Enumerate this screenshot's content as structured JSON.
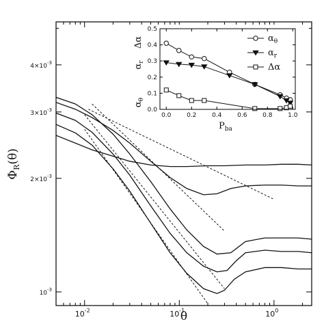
{
  "chart_data": [
    {
      "type": "line",
      "role": "main",
      "xscale": "log",
      "yscale": "log",
      "xlim": [
        0.005,
        2.5
      ],
      "ylim": [
        0.00092,
        0.0052
      ],
      "xlabel": "θ",
      "ylabel": "Φ_R(θ)",
      "ylabel_main": "Φ",
      "ylabel_sub": "R",
      "ylabel_tail": "(θ)",
      "x_ticks": [
        {
          "value": 0.01,
          "label": "10",
          "exp": "-2"
        },
        {
          "value": 0.1,
          "label": "10",
          "exp": "-1"
        },
        {
          "value": 1,
          "label": "10",
          "exp": "0"
        }
      ],
      "y_ticks": [
        {
          "value": 0.001,
          "label": "10",
          "exp": "-3"
        },
        {
          "value": 0.002,
          "label": "2×10",
          "exp": "-3"
        },
        {
          "value": 0.003,
          "label": "3×10",
          "exp": "-3"
        },
        {
          "value": 0.004,
          "label": "4×10",
          "exp": "-3"
        }
      ],
      "series": [
        {
          "style": "solid",
          "x": [
            0.005,
            0.008,
            0.012,
            0.02,
            0.03,
            0.05,
            0.08,
            0.12,
            0.2,
            0.3,
            0.5,
            0.8,
            1.2,
            1.8,
            2.5
          ],
          "y": [
            0.0026,
            0.00248,
            0.00238,
            0.00229,
            0.00222,
            0.00217,
            0.00215,
            0.00215,
            0.00216,
            0.00216,
            0.00217,
            0.00217,
            0.00218,
            0.00218,
            0.00217
          ]
        },
        {
          "style": "solid",
          "x": [
            0.005,
            0.008,
            0.012,
            0.02,
            0.03,
            0.05,
            0.08,
            0.12,
            0.18,
            0.25,
            0.35,
            0.5,
            0.8,
            1.2,
            1.8,
            2.5
          ],
          "y": [
            0.00318,
            0.00305,
            0.0029,
            0.00268,
            0.00248,
            0.00222,
            0.00201,
            0.00188,
            0.00181,
            0.00182,
            0.00188,
            0.00191,
            0.00192,
            0.00192,
            0.00191,
            0.00191
          ]
        },
        {
          "style": "solid",
          "x": [
            0.005,
            0.008,
            0.012,
            0.02,
            0.03,
            0.05,
            0.08,
            0.12,
            0.18,
            0.25,
            0.35,
            0.5,
            0.8,
            1.2,
            1.8,
            2.5
          ],
          "y": [
            0.00328,
            0.00315,
            0.00295,
            0.00262,
            0.00232,
            0.00196,
            0.00166,
            0.00146,
            0.00132,
            0.00126,
            0.00127,
            0.00136,
            0.00139,
            0.00139,
            0.00139,
            0.00138
          ]
        },
        {
          "style": "solid",
          "x": [
            0.005,
            0.008,
            0.012,
            0.02,
            0.03,
            0.05,
            0.08,
            0.12,
            0.18,
            0.25,
            0.32,
            0.4,
            0.5,
            0.8,
            1.2,
            1.8,
            2.5
          ],
          "y": [
            0.00298,
            0.00285,
            0.00265,
            0.00232,
            0.00204,
            0.00169,
            0.00143,
            0.00127,
            0.00117,
            0.00113,
            0.00114,
            0.00121,
            0.00127,
            0.00129,
            0.00128,
            0.00128,
            0.00127
          ]
        },
        {
          "style": "solid",
          "x": [
            0.005,
            0.008,
            0.012,
            0.02,
            0.03,
            0.05,
            0.08,
            0.12,
            0.18,
            0.25,
            0.3,
            0.38,
            0.5,
            0.8,
            1.2,
            1.8,
            2.5
          ],
          "y": [
            0.00278,
            0.00264,
            0.00245,
            0.00212,
            0.00185,
            0.00152,
            0.00127,
            0.00112,
            0.00102,
            0.00099,
            0.00101,
            0.00108,
            0.00113,
            0.00116,
            0.00116,
            0.00115,
            0.00115
          ]
        },
        {
          "style": "dashed",
          "x": [
            0.011,
            1.0
          ],
          "y": [
            0.00305,
            0.00176
          ]
        },
        {
          "style": "dashed",
          "x": [
            0.012,
            0.3
          ],
          "y": [
            0.00315,
            0.00145
          ]
        },
        {
          "style": "dashed",
          "x": [
            0.01,
            0.3
          ],
          "y": [
            0.00295,
            0.00102
          ]
        },
        {
          "style": "dashed",
          "x": [
            0.01,
            0.2
          ],
          "y": [
            0.0027,
            0.00093
          ]
        }
      ]
    },
    {
      "type": "line",
      "role": "inset",
      "xlim": [
        -0.05,
        1.02
      ],
      "ylim": [
        0,
        0.5
      ],
      "xlabel": "P",
      "xlabel_sub": "ba",
      "ylabel_parts": [
        {
          "main": "α",
          "sub": "θ"
        },
        {
          "main": "α",
          "sub": "r"
        },
        {
          "main": "Δα",
          "sub": ""
        }
      ],
      "x_ticks": [
        0,
        0.2,
        0.4,
        0.6,
        0.8,
        1.0
      ],
      "x_tick_labels": [
        "0.0",
        "0.2",
        "0.4",
        "0.6",
        "0.8",
        "1.0"
      ],
      "y_ticks": [
        0,
        0.1,
        0.2,
        0.3,
        0.4,
        0.5
      ],
      "y_tick_labels": [
        "0.0",
        "0.1",
        "0.2",
        "0.3",
        "0.4",
        "0.5"
      ],
      "legend_position": "top-right",
      "series": [
        {
          "name": "α",
          "name_sub": "θ",
          "marker": "circle",
          "x": [
            0,
            0.1,
            0.2,
            0.3,
            0.5,
            0.7,
            0.9,
            0.95,
            0.98
          ],
          "y": [
            0.41,
            0.365,
            0.325,
            0.315,
            0.23,
            0.155,
            0.09,
            0.07,
            0.06
          ]
        },
        {
          "name": "α",
          "name_sub": "r",
          "marker": "triangle-down",
          "x": [
            0,
            0.1,
            0.2,
            0.3,
            0.5,
            0.7,
            0.9,
            0.95,
            0.98
          ],
          "y": [
            0.29,
            0.28,
            0.275,
            0.265,
            0.21,
            0.155,
            0.08,
            0.055,
            0.04
          ]
        },
        {
          "name": "Δα",
          "name_sub": "",
          "marker": "square",
          "x": [
            0,
            0.1,
            0.2,
            0.3,
            0.7,
            0.9,
            0.95,
            0.98
          ],
          "y": [
            0.12,
            0.085,
            0.055,
            0.055,
            0.005,
            0.005,
            0.01,
            0.02
          ]
        }
      ]
    }
  ]
}
